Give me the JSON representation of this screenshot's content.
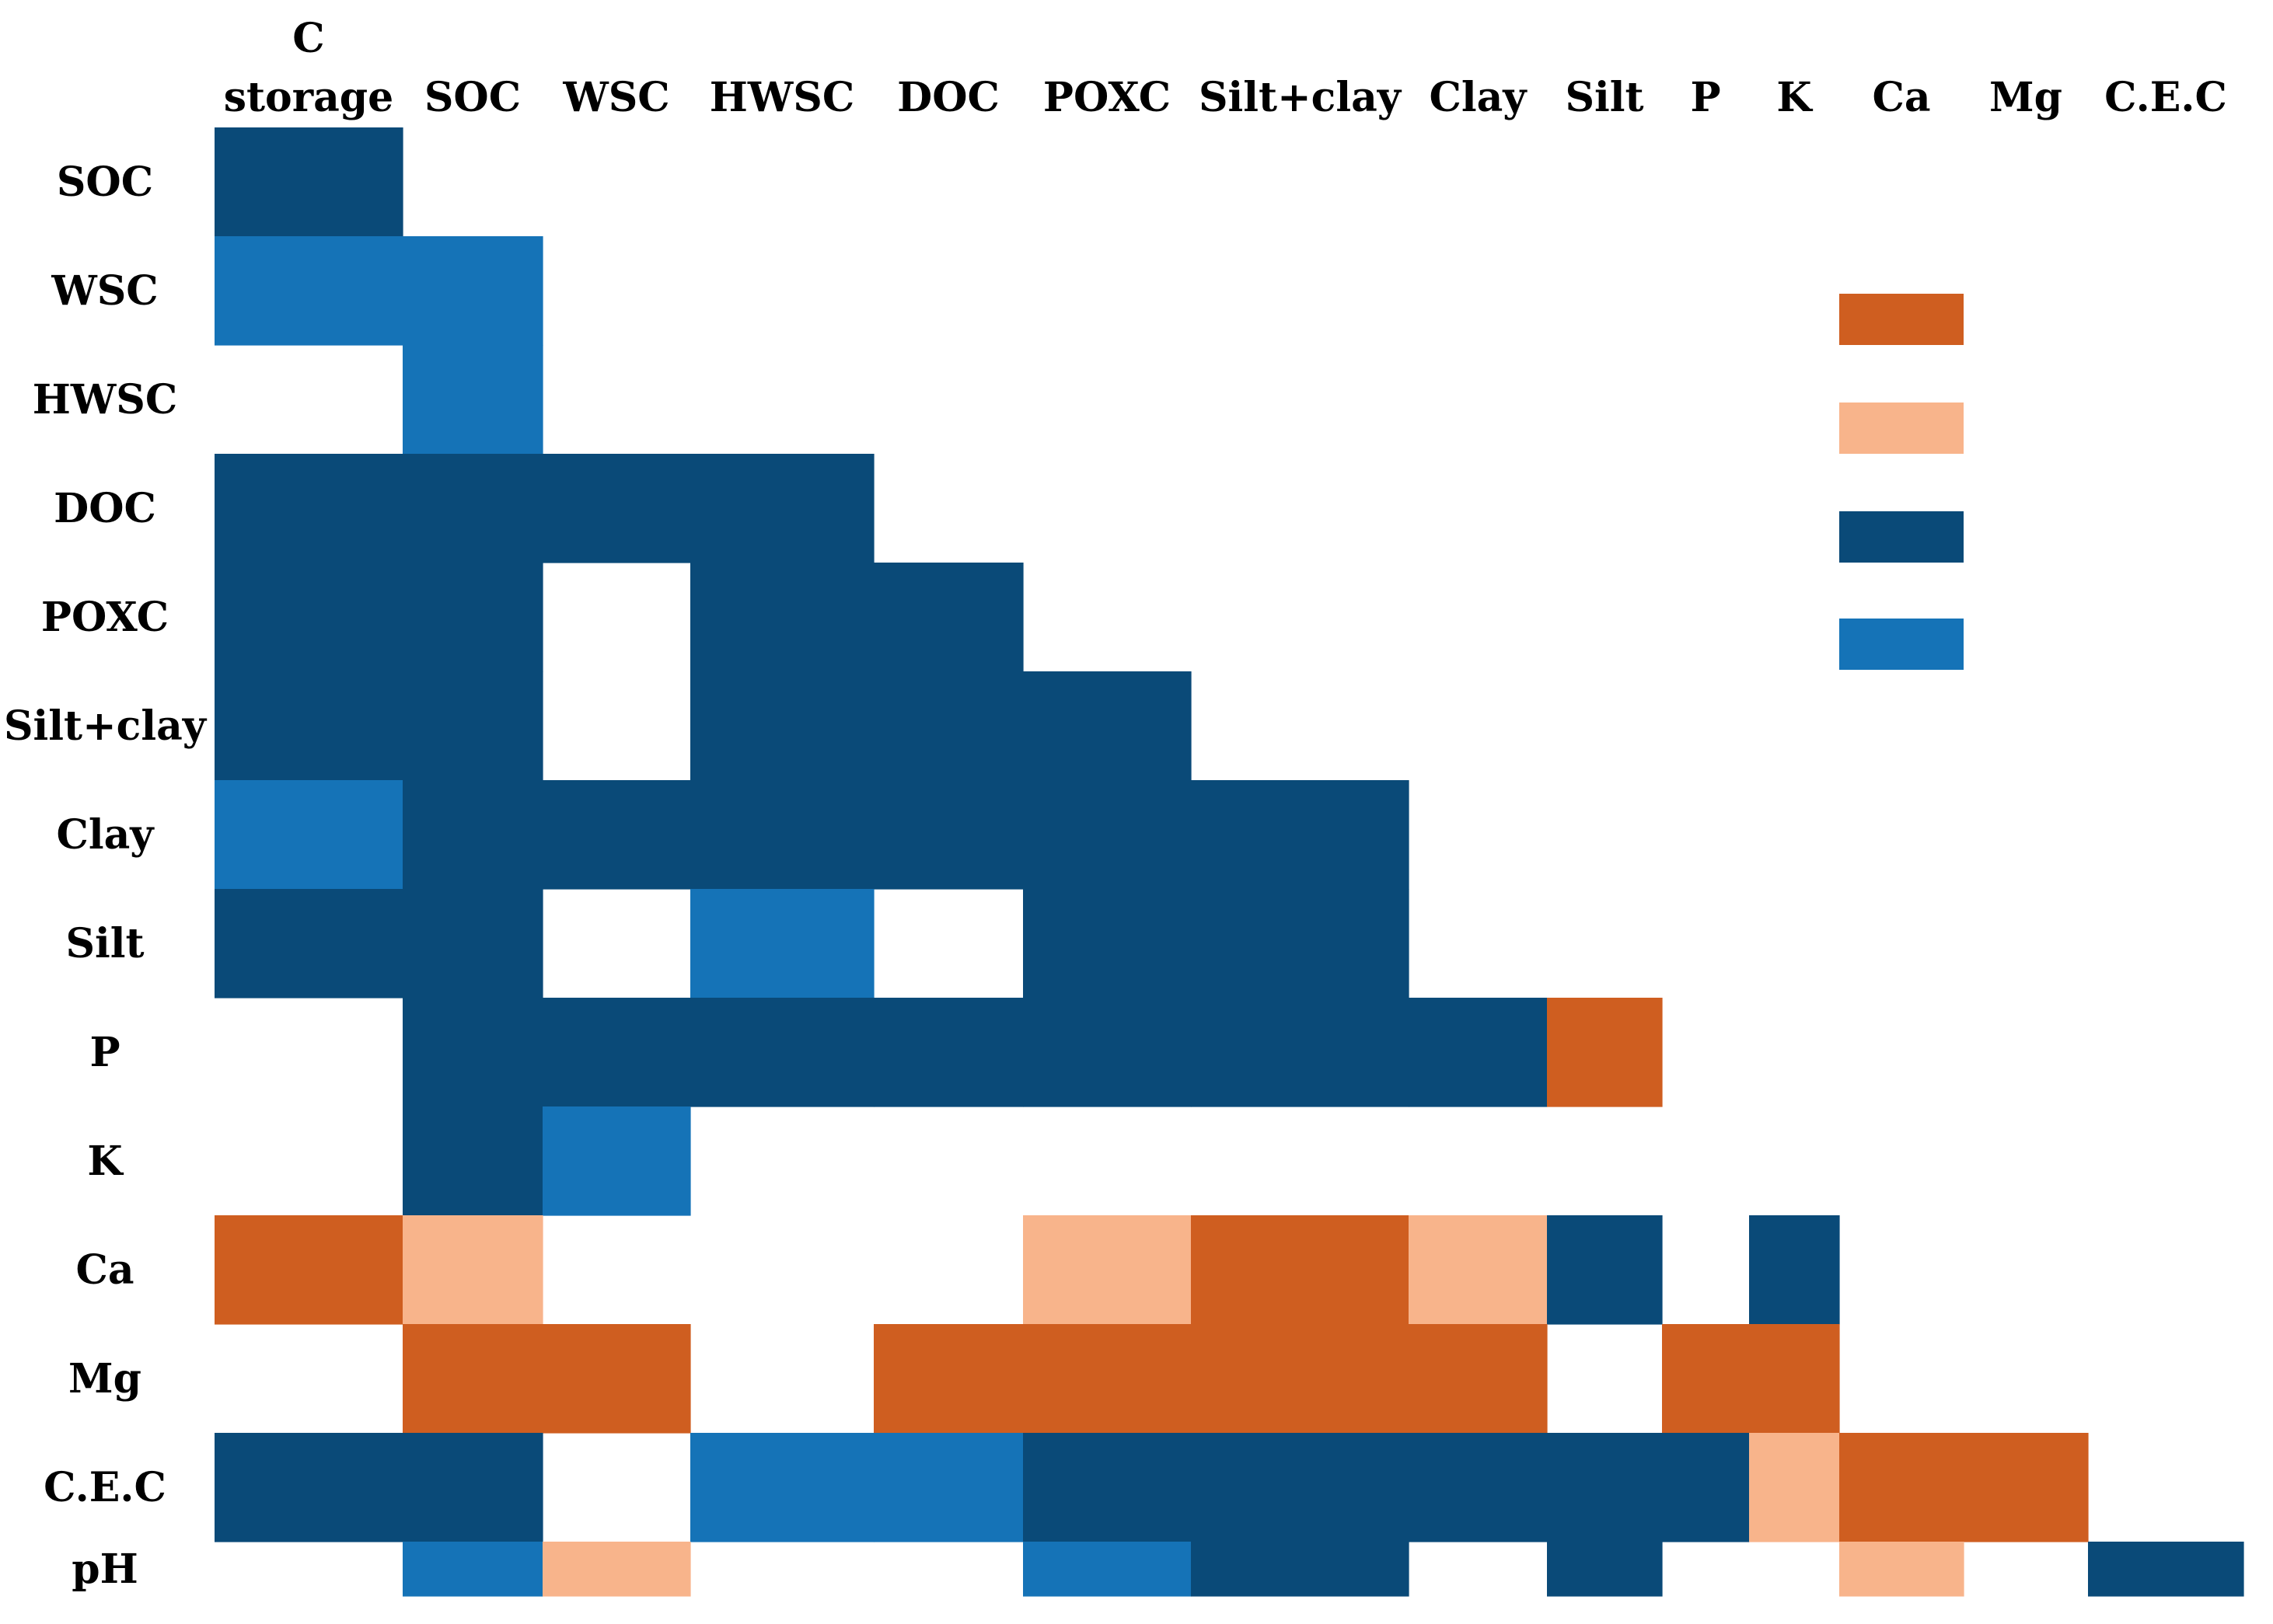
{
  "chart_data": {
    "type": "heatmap",
    "title": "",
    "columns": [
      [
        "C",
        "storage"
      ],
      [
        "SOC"
      ],
      [
        "WSC"
      ],
      [
        "HWSC"
      ],
      [
        "DOC"
      ],
      [
        "POXC"
      ],
      [
        "Silt+clay"
      ],
      [
        "Clay"
      ],
      [
        "Silt"
      ],
      [
        "P"
      ],
      [
        "K"
      ],
      [
        "Ca"
      ],
      [
        "Mg"
      ],
      [
        "C.E.C"
      ]
    ],
    "rows": [
      "SOC",
      "WSC",
      "HWSC",
      "DOC",
      "POXC",
      "Silt+clay",
      "Clay",
      "Silt",
      "P",
      "K",
      "Ca",
      "Mg",
      "C.E.C",
      "pH"
    ],
    "categories": {
      "D": "#0a4a78",
      "B": "#1573b7",
      "O": "#cf5e20",
      "L": "#f8b48b"
    },
    "matrix": [
      [
        "D",
        "",
        "",
        "",
        "",
        "",
        "",
        "",
        "",
        "",
        "",
        "",
        "",
        ""
      ],
      [
        "B",
        "B",
        "",
        "",
        "",
        "",
        "",
        "",
        "",
        "",
        "",
        "",
        "",
        ""
      ],
      [
        "",
        "B",
        "",
        "",
        "",
        "",
        "",
        "",
        "",
        "",
        "",
        "",
        "",
        ""
      ],
      [
        "D",
        "D",
        "D",
        "D",
        "",
        "",
        "",
        "",
        "",
        "",
        "",
        "",
        "",
        ""
      ],
      [
        "D",
        "D",
        "",
        "D",
        "D",
        "",
        "",
        "",
        "",
        "",
        "",
        "",
        "",
        ""
      ],
      [
        "D",
        "D",
        "",
        "D",
        "D",
        "D",
        "",
        "",
        "",
        "",
        "",
        "",
        "",
        ""
      ],
      [
        "B",
        "D",
        "D",
        "D",
        "D",
        "D",
        "D",
        "",
        "",
        "",
        "",
        "",
        "",
        ""
      ],
      [
        "D",
        "D",
        "",
        "B",
        "",
        "D",
        "D",
        "",
        "",
        "",
        "",
        "",
        "",
        ""
      ],
      [
        "",
        "D",
        "D",
        "D",
        "D",
        "D",
        "D",
        "D",
        "O",
        "",
        "",
        "",
        "",
        ""
      ],
      [
        "",
        "D",
        "B",
        "",
        "",
        "",
        "",
        "",
        "",
        "",
        "",
        "",
        "",
        ""
      ],
      [
        "O",
        "L",
        "",
        "",
        "",
        "L",
        "O",
        "L",
        "D",
        "",
        "D",
        "",
        "",
        ""
      ],
      [
        "",
        "O",
        "O",
        "",
        "O",
        "O",
        "O",
        "O",
        "",
        "O",
        "O",
        "",
        "",
        ""
      ],
      [
        "D",
        "D",
        "",
        "B",
        "B",
        "D",
        "D",
        "D",
        "D",
        "D",
        "L",
        "O",
        "O",
        ""
      ],
      [
        "",
        "B",
        "L",
        "",
        "",
        "B",
        "D",
        "",
        "D",
        "",
        "",
        "L",
        "",
        "D"
      ]
    ],
    "legend": {
      "placement": "top-right",
      "order": [
        "O",
        "L",
        "D",
        "B"
      ],
      "labels": [
        "",
        "",
        "",
        ""
      ]
    }
  }
}
